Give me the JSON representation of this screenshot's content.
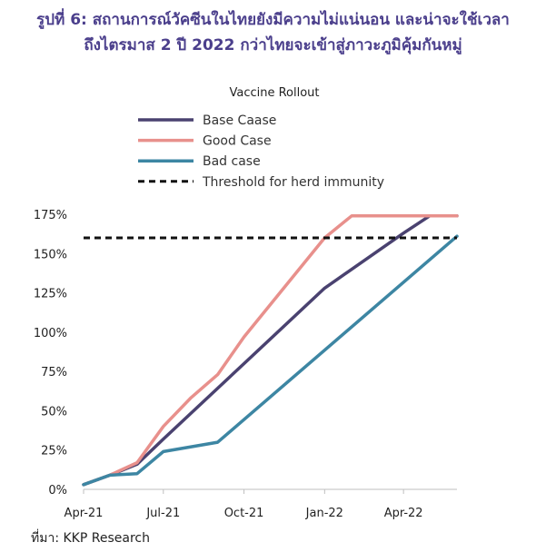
{
  "figure": {
    "title_line_1": "รูปที่ 6: สถานการณ์วัคซีนในไทยยังมีความไม่แน่นอน และน่าจะใช้เวลา",
    "title_line_2": "ถึงไตรมาส 2 ปี 2022 กว่าไทยจะเข้าสู่ภาวะภูมิคุ้มกันหมู่",
    "source": "ที่มา: KKP Research"
  },
  "chart_data": {
    "type": "line",
    "title": "Vaccine Rollout",
    "x_tick_labels": [
      "Apr-21",
      "Jul-21",
      "Oct-21",
      "Jan-22",
      "Apr-22"
    ],
    "x_tick_dates": [
      "2021-04-01",
      "2021-07-01",
      "2021-10-01",
      "2022-01-01",
      "2022-04-01"
    ],
    "xlim": [
      "2021-04-01",
      "2022-06-01"
    ],
    "ylim": [
      0,
      175
    ],
    "y_ticks": [
      0,
      25,
      50,
      75,
      100,
      125,
      150,
      175
    ],
    "y_tick_labels": [
      "0%",
      "25%",
      "50%",
      "75%",
      "100%",
      "125%",
      "150%",
      "175%"
    ],
    "grid": false,
    "legend_position": "top-left",
    "series": [
      {
        "name": "Base Caase",
        "color": "#4a4270",
        "style": "solid",
        "points": [
          [
            "2021-04-01",
            3
          ],
          [
            "2021-05-01",
            9
          ],
          [
            "2021-06-01",
            16
          ],
          [
            "2021-07-01",
            32
          ],
          [
            "2021-10-01",
            80
          ],
          [
            "2022-01-01",
            128
          ],
          [
            "2022-04-01",
            163
          ],
          [
            "2022-05-01",
            174
          ],
          [
            "2022-06-01",
            174
          ]
        ]
      },
      {
        "name": "Good Case",
        "color": "#e8908c",
        "style": "solid",
        "points": [
          [
            "2021-04-01",
            3
          ],
          [
            "2021-05-01",
            9
          ],
          [
            "2021-06-01",
            17
          ],
          [
            "2021-07-01",
            40
          ],
          [
            "2021-08-01",
            58
          ],
          [
            "2021-09-01",
            73
          ],
          [
            "2021-10-01",
            97
          ],
          [
            "2022-01-01",
            160
          ],
          [
            "2022-02-01",
            174
          ],
          [
            "2022-06-01",
            174
          ]
        ]
      },
      {
        "name": "Bad case",
        "color": "#3d86a3",
        "style": "solid",
        "points": [
          [
            "2021-04-01",
            3
          ],
          [
            "2021-05-01",
            9
          ],
          [
            "2021-06-01",
            10
          ],
          [
            "2021-07-01",
            24
          ],
          [
            "2021-09-01",
            30
          ],
          [
            "2022-06-01",
            161
          ]
        ]
      },
      {
        "name": "Threshold for herd immunity",
        "color": "#111111",
        "style": "dashed",
        "points": [
          [
            "2021-04-01",
            160
          ],
          [
            "2022-06-01",
            160
          ]
        ]
      }
    ]
  }
}
